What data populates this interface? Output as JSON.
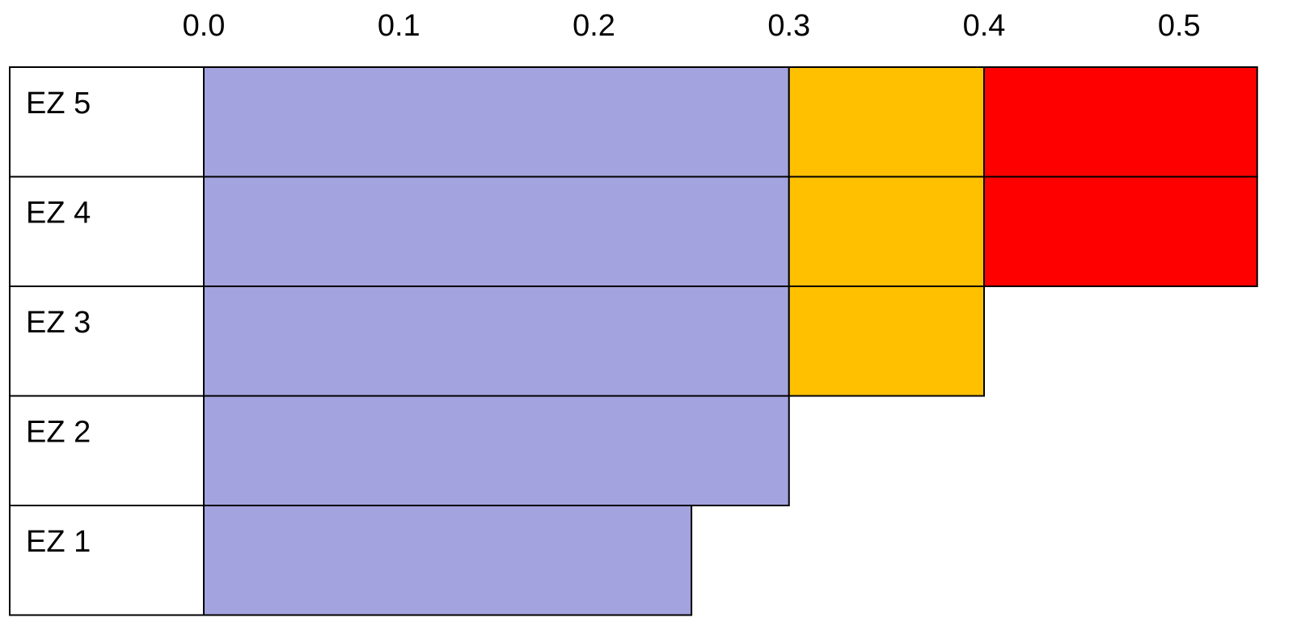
{
  "chart_data": {
    "type": "bar",
    "stacked": true,
    "orientation": "horizontal",
    "title": "",
    "xlabel": "",
    "ylabel": "",
    "xlim": [
      -0.1,
      0.54
    ],
    "x_ticks": [
      "0.0",
      "0.1",
      "0.2",
      "0.3",
      "0.4",
      "0.5"
    ],
    "grid": false,
    "categories": [
      "EZ 5",
      "EZ 4",
      "EZ 3",
      "EZ 2",
      "EZ 1"
    ],
    "series": [
      {
        "color": "#A3A3DF",
        "values": [
          0.3,
          0.3,
          0.3,
          0.3,
          0.25
        ]
      },
      {
        "color": "#FFC000",
        "values": [
          0.1,
          0.1,
          0.1,
          0,
          0
        ]
      },
      {
        "color": "#FF0000",
        "values": [
          0.14,
          0.14,
          0,
          0,
          0
        ]
      }
    ]
  }
}
